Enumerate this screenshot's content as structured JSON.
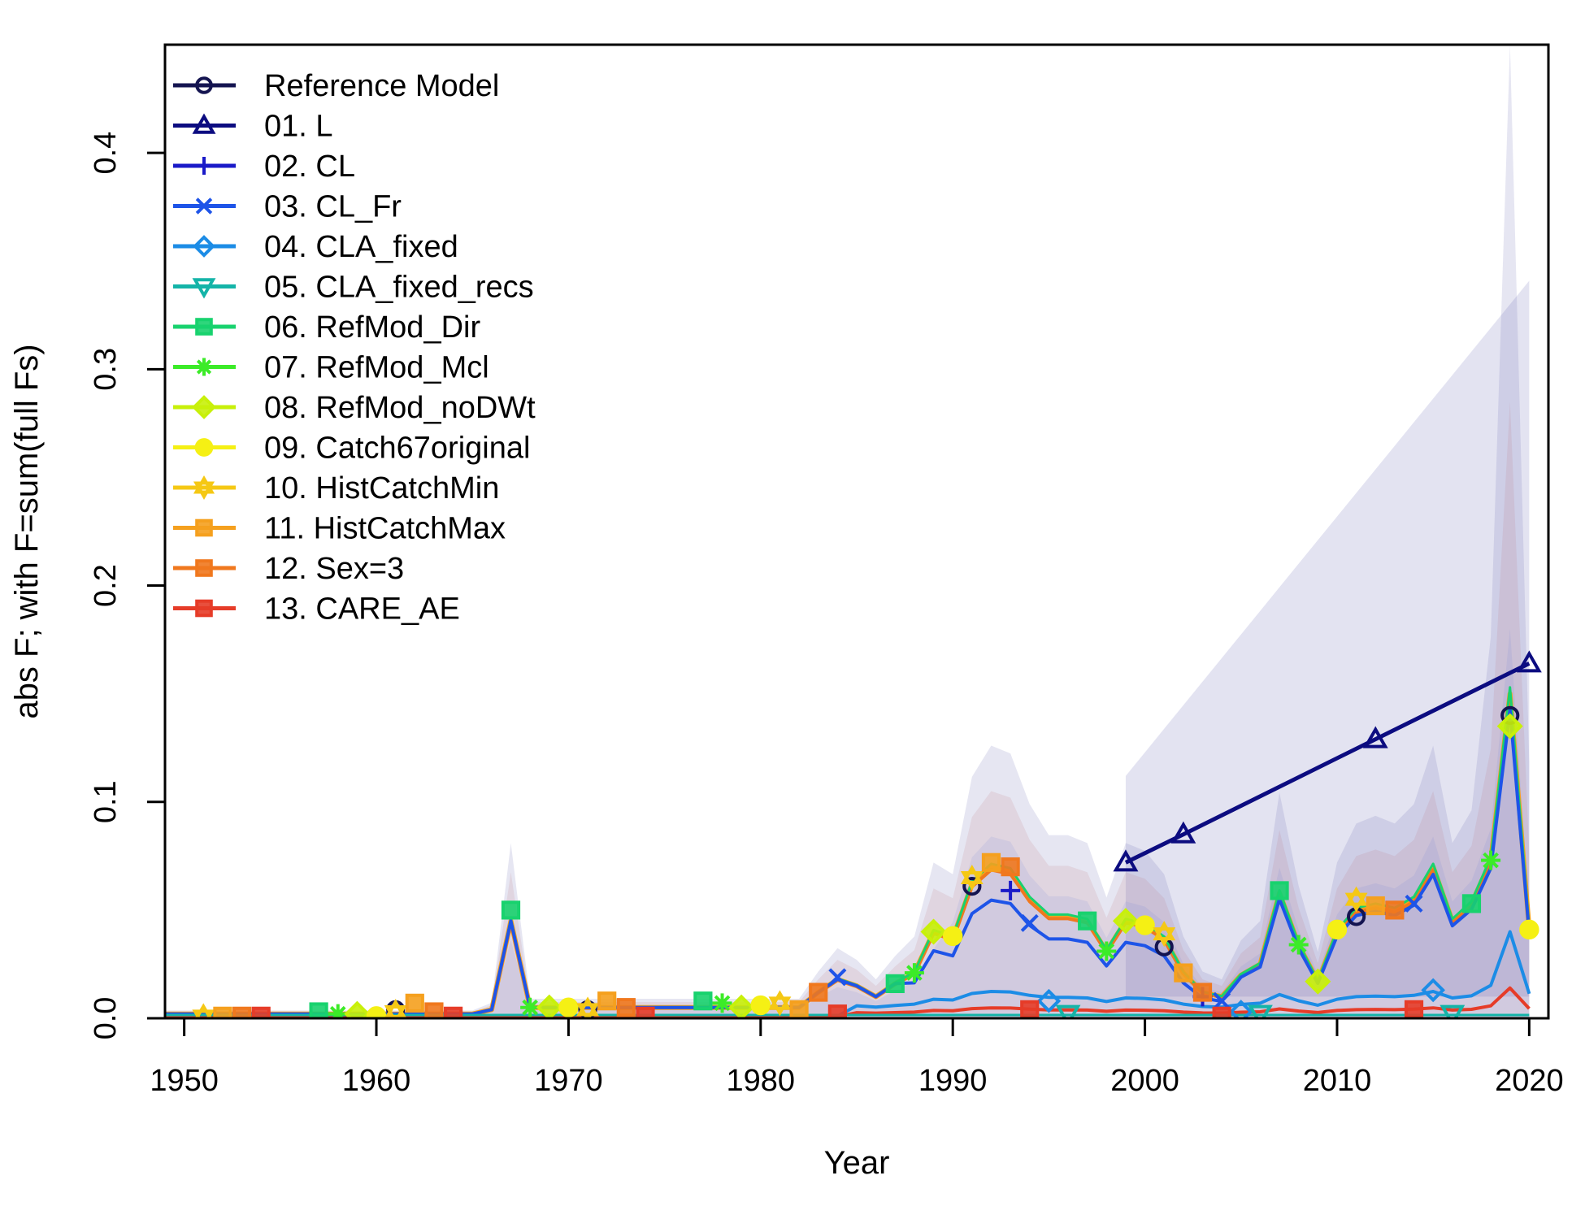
{
  "chart_data": {
    "type": "line",
    "xlabel": "Year",
    "ylabel": "abs F; with F=sum(full Fs)",
    "xlim": [
      1949,
      2021
    ],
    "ylim": [
      0,
      0.45
    ],
    "x_ticks": [
      1950,
      1960,
      1970,
      1980,
      1990,
      2000,
      2010,
      2020
    ],
    "y_ticks": [
      0.0,
      0.1,
      0.2,
      0.3,
      0.4
    ],
    "x_tick_labels": [
      "1950",
      "1960",
      "1970",
      "1980",
      "1990",
      "2000",
      "2010",
      "2020"
    ],
    "y_tick_labels": [
      "0.0",
      "0.1",
      "0.2",
      "0.3",
      "0.4"
    ],
    "legend_position": "top-left",
    "grid": false,
    "series": [
      {
        "name": "Reference Model",
        "color": "#141450",
        "marker": "circle",
        "x": [
          1961,
          1971,
          1991,
          2001,
          2011,
          2019
        ],
        "y": [
          0.004,
          0.004,
          0.061,
          0.033,
          0.047,
          0.14
        ]
      },
      {
        "name": "01. L",
        "color": "#0c0c80",
        "marker": "triangle",
        "x": [
          1999,
          2002,
          2012,
          2020
        ],
        "y": [
          0.072,
          0.085,
          0.129,
          0.164
        ]
      },
      {
        "name": "02. CL",
        "color": "#1a1ac8",
        "marker": "plus",
        "x": [
          1993,
          2003
        ],
        "y": [
          0.059,
          0.01
        ]
      },
      {
        "name": "03. CL_Fr",
        "color": "#1e54e8",
        "marker": "cross",
        "x": [
          1984,
          1994,
          2004,
          2014
        ],
        "y": [
          0.019,
          0.044,
          0.008,
          0.053
        ]
      },
      {
        "name": "04. CLA_fixed",
        "color": "#1c8ce6",
        "marker": "diamond",
        "x": [
          1995,
          2005,
          2015
        ],
        "y": [
          0.008,
          0.003,
          0.013
        ]
      },
      {
        "name": "05. CLA_fixed_recs",
        "color": "#14b4a8",
        "marker": "triangle-down",
        "x": [
          1996,
          2006,
          2016
        ],
        "y": [
          0.002,
          0.002,
          0.002
        ]
      },
      {
        "name": "06. RefMod_Dir",
        "color": "#18d26e",
        "marker": "square-cross",
        "x": [
          1957,
          1967,
          1977,
          1987,
          1997,
          2007,
          2017
        ],
        "y": [
          0.003,
          0.05,
          0.008,
          0.016,
          0.045,
          0.059,
          0.053
        ]
      },
      {
        "name": "07. RefMod_Mcl",
        "color": "#3ceb28",
        "marker": "asterisk",
        "x": [
          1958,
          1968,
          1978,
          1988,
          1998,
          2008,
          2018
        ],
        "y": [
          0.002,
          0.005,
          0.007,
          0.021,
          0.031,
          0.034,
          0.073
        ]
      },
      {
        "name": "08. RefMod_noDWt",
        "color": "#c8f00a",
        "marker": "diamond-plus",
        "x": [
          1959,
          1969,
          1979,
          1989,
          1999,
          2009,
          2019
        ],
        "y": [
          0.002,
          0.005,
          0.005,
          0.04,
          0.045,
          0.017,
          0.135
        ]
      },
      {
        "name": "09. Catch67original",
        "color": "#f5f014",
        "marker": "dot",
        "x": [
          1960,
          1970,
          1980,
          1990,
          2000,
          2010,
          2020
        ],
        "y": [
          0.001,
          0.005,
          0.006,
          0.038,
          0.043,
          0.041,
          0.041
        ]
      },
      {
        "name": "10. HistCatchMin",
        "color": "#f5c814",
        "marker": "star",
        "x": [
          1951,
          1961,
          1971,
          1981,
          1991,
          2001,
          2011
        ],
        "y": [
          0.001,
          0.003,
          0.004,
          0.007,
          0.065,
          0.039,
          0.055
        ]
      },
      {
        "name": "11. HistCatchMax",
        "color": "#f5a01e",
        "marker": "square-plus",
        "x": [
          1952,
          1962,
          1972,
          1982,
          1992,
          2002,
          2012
        ],
        "y": [
          0.001,
          0.007,
          0.008,
          0.004,
          0.072,
          0.021,
          0.052
        ]
      },
      {
        "name": "12. Sex=3",
        "color": "#f0781e",
        "marker": "square-x",
        "x": [
          1953,
          1963,
          1973,
          1983,
          1993,
          2003,
          2013
        ],
        "y": [
          0.001,
          0.003,
          0.005,
          0.012,
          0.07,
          0.012,
          0.05
        ]
      },
      {
        "name": "13. CARE_AE",
        "color": "#e63c28",
        "marker": "square-dot",
        "x": [
          1954,
          1964,
          1974,
          1984,
          1994,
          2004,
          2014
        ],
        "y": [
          0.001,
          0.001,
          0.001,
          0.002,
          0.004,
          0.001,
          0.004
        ]
      }
    ]
  }
}
